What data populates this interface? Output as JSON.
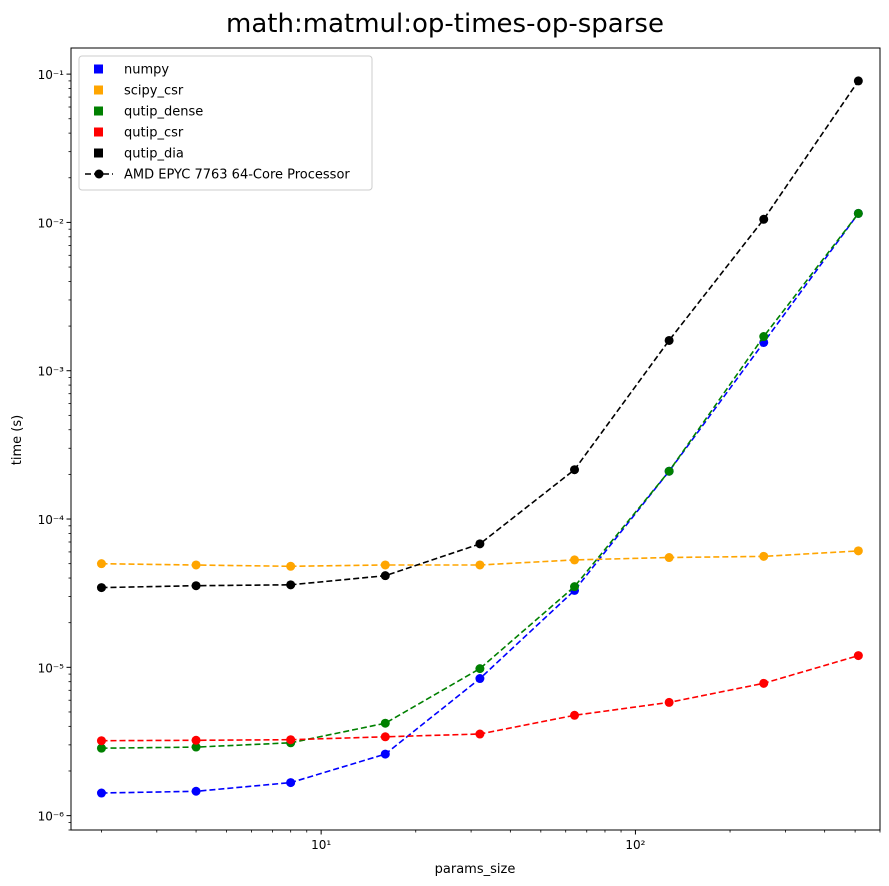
{
  "chart_data": {
    "type": "line",
    "title": "math:matmul:op-times-op-sparse",
    "xlabel": "params_size",
    "ylabel": "time (s)",
    "xscale": "log",
    "yscale": "log",
    "xlim": [
      1.6,
      600
    ],
    "ylim": [
      8e-07,
      0.15
    ],
    "legend_position": "top-left",
    "x": [
      2,
      4,
      8,
      16,
      32,
      64,
      128,
      256,
      512
    ],
    "x_ticks": [
      {
        "value": 10,
        "label": "10¹"
      },
      {
        "value": 100,
        "label": "10²"
      }
    ],
    "y_ticks": [
      {
        "value": 1e-06,
        "label": "10⁻⁶"
      },
      {
        "value": 1e-05,
        "label": "10⁻⁵"
      },
      {
        "value": 0.0001,
        "label": "10⁻⁴"
      },
      {
        "value": 0.001,
        "label": "10⁻³"
      },
      {
        "value": 0.01,
        "label": "10⁻²"
      },
      {
        "value": 0.1,
        "label": "10⁻¹"
      }
    ],
    "series": [
      {
        "name": "numpy",
        "color": "#0000ff",
        "values": [
          1.42e-06,
          1.46e-06,
          1.67e-06,
          2.6e-06,
          8.4e-06,
          3.3e-05,
          0.00021,
          0.00155,
          0.0115
        ]
      },
      {
        "name": "scipy_csr",
        "color": "#ffa500",
        "values": [
          5e-05,
          4.9e-05,
          4.8e-05,
          4.9e-05,
          4.9e-05,
          5.3e-05,
          5.5e-05,
          5.6e-05,
          6.1e-05
        ]
      },
      {
        "name": "qutip_dense",
        "color": "#008000",
        "values": [
          2.85e-06,
          2.9e-06,
          3.1e-06,
          4.2e-06,
          9.8e-06,
          3.5e-05,
          0.00021,
          0.0017,
          0.0115
        ]
      },
      {
        "name": "qutip_csr",
        "color": "#ff0000",
        "values": [
          3.2e-06,
          3.22e-06,
          3.25e-06,
          3.4e-06,
          3.55e-06,
          4.75e-06,
          5.8e-06,
          7.8e-06,
          1.2e-05
        ]
      },
      {
        "name": "qutip_dia",
        "color": "#000000",
        "values": [
          3.45e-05,
          3.55e-05,
          3.6e-05,
          4.15e-05,
          6.8e-05,
          0.000215,
          0.0016,
          0.0105,
          0.09
        ]
      }
    ],
    "legend_extra": {
      "label": "AMD EPYC 7763 64-Core Processor",
      "color": "#000000",
      "style": "dashed-line-with-marker"
    }
  }
}
